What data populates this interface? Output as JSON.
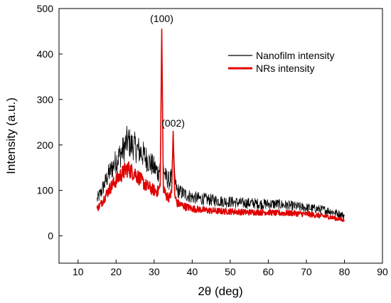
{
  "chart_data": {
    "type": "line",
    "title": "",
    "xlabel": "2θ (deg)",
    "ylabel": "Intensity (a.u.)",
    "xlim": [
      5,
      90
    ],
    "ylim": [
      -60,
      500
    ],
    "xticks": [
      10,
      20,
      30,
      40,
      50,
      60,
      70,
      80,
      90
    ],
    "yticks": [
      0,
      100,
      200,
      300,
      400,
      500
    ],
    "grid": false,
    "legend_position": "top-right",
    "series": [
      {
        "name": "Nanofilm intensity",
        "color": "#000000",
        "x": [
          15,
          16,
          17,
          18,
          19,
          20,
          21,
          22,
          22.5,
          23,
          23.5,
          24,
          24.5,
          25,
          25.5,
          26,
          27,
          28,
          29,
          30,
          31,
          31.6,
          32.0,
          32.4,
          33,
          34,
          34.6,
          35.0,
          35.4,
          36,
          38,
          40,
          42,
          44,
          46,
          48,
          50,
          52,
          54,
          56,
          58,
          60,
          62,
          64,
          66,
          68,
          70,
          72,
          74,
          76,
          78,
          80
        ],
        "y": [
          80,
          95,
          115,
          135,
          150,
          165,
          178,
          190,
          200,
          210,
          205,
          198,
          200,
          195,
          190,
          188,
          180,
          170,
          160,
          150,
          140,
          150,
          440,
          150,
          130,
          120,
          130,
          220,
          120,
          100,
          92,
          85,
          82,
          80,
          78,
          76,
          75,
          73,
          72,
          72,
          70,
          70,
          70,
          68,
          66,
          64,
          62,
          60,
          58,
          55,
          50,
          45
        ]
      },
      {
        "name": "NRs intensity",
        "color": "#e00000",
        "x": [
          15,
          16,
          17,
          18,
          19,
          20,
          21,
          22,
          22.5,
          23,
          23.5,
          24,
          24.5,
          25,
          25.5,
          26,
          27,
          28,
          29,
          30,
          31,
          31.6,
          32.0,
          32.4,
          33,
          34,
          34.6,
          35.0,
          35.4,
          36,
          38,
          40,
          42,
          44,
          46,
          48,
          50,
          52,
          54,
          56,
          58,
          60,
          62,
          64,
          66,
          68,
          70,
          72,
          74,
          76,
          78,
          80
        ],
        "y": [
          60,
          70,
          85,
          100,
          112,
          122,
          132,
          140,
          145,
          148,
          146,
          142,
          140,
          138,
          132,
          128,
          118,
          110,
          105,
          100,
          98,
          110,
          455,
          110,
          90,
          85,
          95,
          230,
          90,
          72,
          65,
          60,
          58,
          56,
          55,
          54,
          54,
          53,
          52,
          52,
          52,
          52,
          50,
          50,
          50,
          49,
          48,
          46,
          44,
          42,
          38,
          35
        ]
      }
    ],
    "annotations": [
      {
        "text": "(100)",
        "x": 32,
        "y": 470
      },
      {
        "text": "(002)",
        "x": 35,
        "y": 240
      }
    ]
  }
}
